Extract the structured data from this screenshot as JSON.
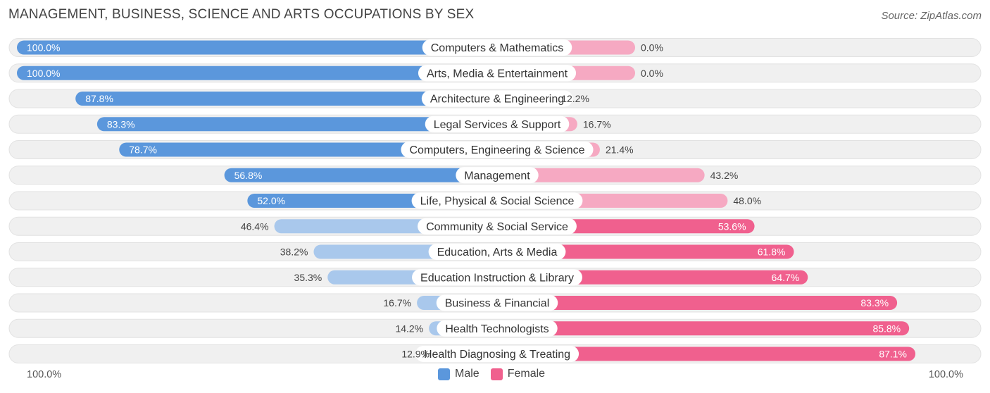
{
  "colors": {
    "male_strong": "#5b97dc",
    "male_light": "#a9c8ec",
    "female_strong": "#f0608e",
    "female_light": "#f6a9c2",
    "track": "#f0f0f0",
    "track_border": "#e2e2e2"
  },
  "chart_data": {
    "type": "bar",
    "orientation": "horizontal-diverging",
    "title": "MANAGEMENT, BUSINESS, SCIENCE AND ARTS OCCUPATIONS BY SEX",
    "source": "Source: ZipAtlas.com",
    "categories": [
      "Computers & Mathematics",
      "Arts, Media & Entertainment",
      "Architecture & Engineering",
      "Legal Services & Support",
      "Computers, Engineering & Science",
      "Management",
      "Life, Physical & Social Science",
      "Community & Social Service",
      "Education, Arts & Media",
      "Education Instruction & Library",
      "Business & Financial",
      "Health Technologists",
      "Health Diagnosing & Treating"
    ],
    "series": [
      {
        "name": "Male",
        "values": [
          100.0,
          100.0,
          87.8,
          83.3,
          78.7,
          56.8,
          52.0,
          46.4,
          38.2,
          35.3,
          16.7,
          14.2,
          12.9
        ],
        "labels": [
          "100.0%",
          "100.0%",
          "87.8%",
          "83.3%",
          "78.7%",
          "56.8%",
          "52.0%",
          "46.4%",
          "38.2%",
          "35.3%",
          "16.7%",
          "14.2%",
          "12.9%"
        ]
      },
      {
        "name": "Female",
        "values": [
          0.0,
          0.0,
          12.2,
          16.7,
          21.4,
          43.2,
          48.0,
          53.6,
          61.8,
          64.7,
          83.3,
          85.8,
          87.1
        ],
        "labels": [
          "0.0%",
          "0.0%",
          "12.2%",
          "16.7%",
          "21.4%",
          "43.2%",
          "48.0%",
          "53.6%",
          "61.8%",
          "64.7%",
          "83.3%",
          "85.8%",
          "87.1%"
        ]
      }
    ],
    "axis": {
      "left_label": "100.0%",
      "right_label": "100.0%",
      "range": [
        0,
        100
      ]
    },
    "legend": {
      "male": "Male",
      "female": "Female",
      "position": "bottom-center"
    }
  }
}
